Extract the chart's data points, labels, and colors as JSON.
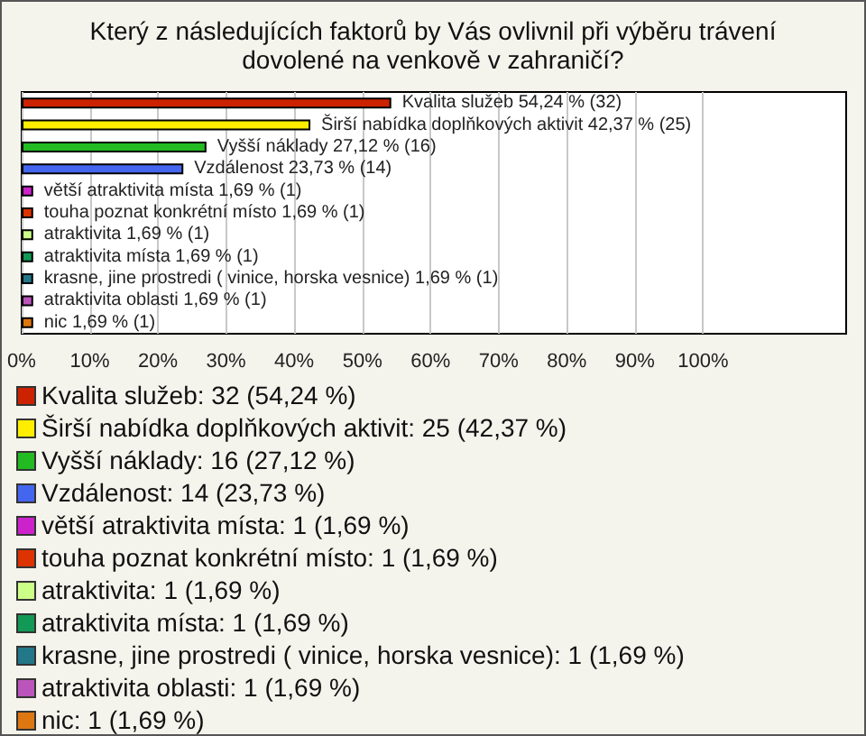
{
  "chart_data": {
    "type": "bar",
    "orientation": "horizontal",
    "title": "Který z následujících faktorů by Vás ovlivnil při výběru trávení dovolené na venkově v zahraničí?",
    "categories": [
      "Kvalita služeb",
      "Širší nabídka doplňkových aktivit",
      "Vyšší náklady",
      "Vzdálenost",
      "větší atraktivita místa",
      "touha poznat konkrétní místo",
      "atraktivita",
      "atraktivita místa",
      "krasne, jine prostredi ( vinice, horska vesnice)",
      "atraktivita oblasti",
      "nic"
    ],
    "values": [
      54.24,
      42.37,
      27.12,
      23.73,
      1.69,
      1.69,
      1.69,
      1.69,
      1.69,
      1.69,
      1.69
    ],
    "colors": [
      "#cc2200",
      "#ffee00",
      "#22bb22",
      "#4466ee",
      "#cc22cc",
      "#dd3300",
      "#ccff88",
      "#119955",
      "#227788",
      "#bb55bb",
      "#dd7711"
    ],
    "value_labels": [
      "54,24 % (32)",
      "42,37 % (25)",
      "27,12 % (16)",
      "23,73 % (14)",
      "1,69 % (1)",
      "1,69 % (1)",
      "1,69 % (1)",
      "1,69 % (1)",
      "1,69 % (1)",
      "1,69 % (1)",
      "1,69 % (1)"
    ],
    "xlim": [
      0,
      121
    ],
    "xticks": [
      {
        "value": 0,
        "label": "0%"
      },
      {
        "value": 10,
        "label": "10%"
      },
      {
        "value": 20,
        "label": "20%"
      },
      {
        "value": 30,
        "label": "30%"
      },
      {
        "value": 40,
        "label": "40%"
      },
      {
        "value": 50,
        "label": "50%"
      },
      {
        "value": 60,
        "label": "60%"
      },
      {
        "value": 70,
        "label": "70%"
      },
      {
        "value": 80,
        "label": "80%"
      },
      {
        "value": 90,
        "label": "90%"
      },
      {
        "value": 100,
        "label": "100%"
      }
    ],
    "grid": "x",
    "annotations": [
      "Kvalita služeb: 32 (54,24 %)",
      "Širší nabídka doplňkových aktivit: 25 (42,37 %)",
      "Vyšší náklady: 16 (27,12 %)",
      "Vzdálenost: 14 (23,73 %)",
      "větší atraktivita místa: 1 (1,69 %)",
      "touha poznat konkrétní místo: 1 (1,69 %)",
      "atraktivita: 1 (1,69 %)",
      "atraktivita místa: 1 (1,69 %)",
      "krasne, jine prostredi ( vinice, horska vesnice): 1 (1,69 %)",
      "atraktivita oblasti: 1 (1,69 %)",
      "nic: 1 (1,69 %)"
    ]
  }
}
